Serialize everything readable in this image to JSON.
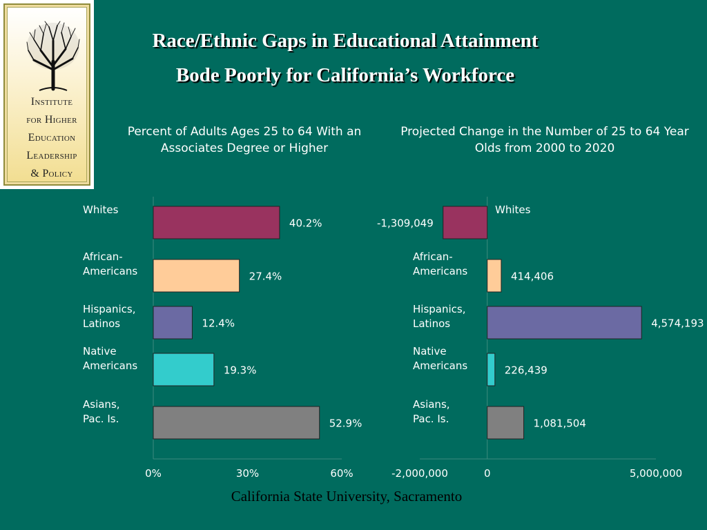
{
  "title_line1": "Race/Ethnic Gaps in Educational Attainment",
  "title_line2": "Bode Poorly for California’s Workforce",
  "logo": {
    "lines": [
      "Institute",
      "for Higher",
      "Education",
      "Leadership",
      "& Policy"
    ]
  },
  "footer": "California State University, Sacramento",
  "colors": {
    "background": "#006B5E",
    "whites": "#99335F",
    "african_americans": "#FFCC99",
    "hispanics": "#6B6AA3",
    "native_americans": "#33CCCC",
    "asians": "#808080"
  },
  "chart_data": [
    {
      "type": "bar",
      "orientation": "horizontal",
      "title": "Percent of Adults Ages 25 to 64 With an Associates Degree or Higher",
      "categories": [
        "Whites",
        "African-\nAmericans",
        "Hispanics,\nLatinos",
        "Native\nAmericans",
        "Asians,\nPac. Is."
      ],
      "values": [
        40.2,
        27.4,
        12.4,
        19.3,
        52.9
      ],
      "value_labels": [
        "40.2%",
        "27.4%",
        "12.4%",
        "19.3%",
        "52.9%"
      ],
      "xlim": [
        0,
        60
      ],
      "xticks": [
        0,
        30,
        60
      ],
      "xtick_labels": [
        "0%",
        "30%",
        "60%"
      ],
      "grid": false,
      "legend": false
    },
    {
      "type": "bar",
      "orientation": "horizontal",
      "title": "Projected Change in the Number of 25 to 64 Year Olds from 2000 to 2020",
      "categories": [
        "Whites",
        "African-\nAmericans",
        "Hispanics,\nLatinos",
        "Native\nAmericans",
        "Asians,\nPac. Is."
      ],
      "values": [
        -1309049,
        414406,
        4574193,
        226439,
        1081504
      ],
      "value_labels": [
        "-1,309,049",
        "414,406",
        "4,574,193",
        "226,439",
        "1,081,504"
      ],
      "xlim": [
        -2000000,
        5000000
      ],
      "xticks": [
        -2000000,
        0,
        5000000
      ],
      "xtick_labels": [
        "-2,000,000",
        "0",
        "5,000,000"
      ],
      "grid": false,
      "legend": false
    }
  ]
}
